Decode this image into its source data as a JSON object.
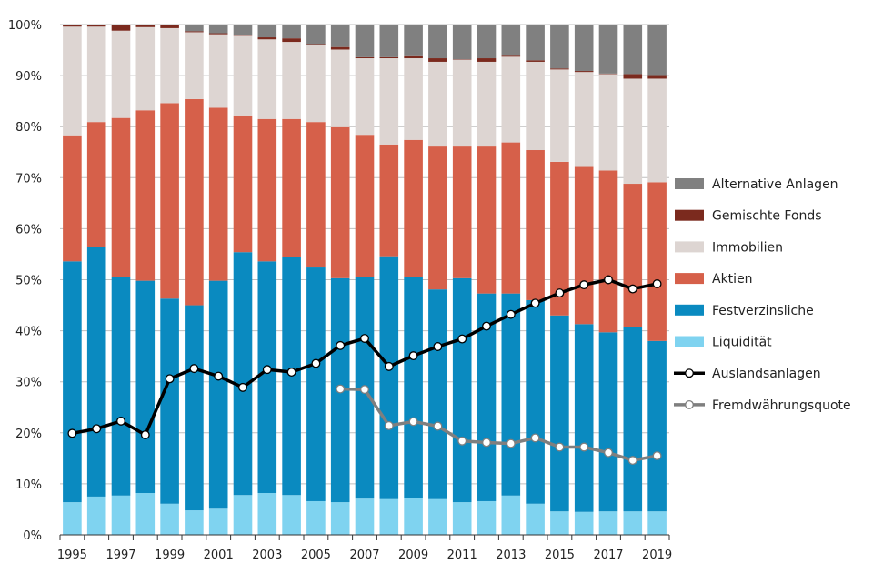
{
  "chart_data": {
    "type": "bar",
    "stacked": true,
    "title": "",
    "xlabel": "",
    "ylabel": "",
    "ylim": [
      0,
      100
    ],
    "y_ticks": [
      "0%",
      "10%",
      "20%",
      "30%",
      "40%",
      "50%",
      "60%",
      "70%",
      "80%",
      "90%",
      "100%"
    ],
    "x_tick_labels": [
      "1995",
      "1997",
      "1999",
      "2001",
      "2003",
      "2005",
      "2007",
      "2009",
      "2011",
      "2013",
      "2015",
      "2017",
      "2019"
    ],
    "grid": true,
    "legend_position": "right",
    "categories": [
      1995,
      1996,
      1997,
      1998,
      1999,
      2000,
      2001,
      2002,
      2003,
      2004,
      2005,
      2006,
      2007,
      2008,
      2009,
      2010,
      2011,
      2012,
      2013,
      2014,
      2015,
      2016,
      2017,
      2018,
      2019
    ],
    "series": [
      {
        "name": "Liquidität",
        "color": "#7fd3f0",
        "values": [
          6.4,
          7.5,
          7.7,
          8.2,
          6.1,
          4.8,
          5.3,
          7.8,
          8.2,
          7.8,
          6.6,
          6.4,
          7.1,
          7.0,
          7.3,
          7.0,
          6.4,
          6.6,
          7.7,
          6.1,
          4.6,
          4.5,
          4.6,
          4.6,
          4.6
        ]
      },
      {
        "name": "Festverzinsliche",
        "color": "#0a8ac0",
        "values": [
          47.2,
          48.9,
          42.8,
          41.6,
          40.2,
          40.2,
          44.5,
          47.6,
          45.4,
          46.6,
          45.8,
          43.9,
          43.4,
          47.6,
          43.2,
          41.1,
          43.9,
          40.7,
          39.6,
          39.9,
          38.4,
          36.8,
          35.1,
          36.1,
          33.4
        ]
      },
      {
        "name": "Aktien",
        "color": "#d6604a",
        "values": [
          24.7,
          24.5,
          31.2,
          33.4,
          38.3,
          40.4,
          33.9,
          26.8,
          27.9,
          27.1,
          28.5,
          29.6,
          27.9,
          21.9,
          26.9,
          28.0,
          25.8,
          28.8,
          29.6,
          29.4,
          30.1,
          30.8,
          31.7,
          28.1,
          31.1
        ]
      },
      {
        "name": "Immobilien",
        "color": "#ddd5d2",
        "values": [
          21.3,
          18.7,
          17.1,
          16.3,
          14.7,
          13.1,
          14.4,
          15.6,
          15.6,
          15.1,
          15.1,
          15.2,
          15.0,
          16.9,
          16.0,
          16.6,
          17.0,
          16.6,
          16.8,
          17.3,
          18.1,
          18.6,
          18.9,
          20.6,
          20.3
        ]
      },
      {
        "name": "Gemischte Fonds",
        "color": "#7b2a1e",
        "values": [
          0.4,
          0.4,
          1.2,
          0.5,
          0.7,
          0.2,
          0.2,
          0.1,
          0.4,
          0.7,
          0.2,
          0.5,
          0.2,
          0.2,
          0.4,
          0.7,
          0.1,
          0.7,
          0.2,
          0.3,
          0.2,
          0.2,
          0.1,
          0.9,
          0.7
        ]
      },
      {
        "name": "Alternative Anlagen",
        "color": "#808080",
        "values": [
          0,
          0,
          0,
          0,
          0,
          1.3,
          1.7,
          2.1,
          2.5,
          2.7,
          3.8,
          4.4,
          6.4,
          6.4,
          6.2,
          6.6,
          6.8,
          6.6,
          6.1,
          7.0,
          8.6,
          9.1,
          9.6,
          9.7,
          9.9
        ]
      }
    ],
    "lines": [
      {
        "name": "Auslandsanlagen",
        "color": "#000000",
        "x": [
          1995,
          1996,
          1997,
          1998,
          1999,
          2000,
          2001,
          2002,
          2003,
          2004,
          2005,
          2006,
          2007,
          2008,
          2009,
          2010,
          2011,
          2012,
          2013,
          2014,
          2015,
          2016,
          2017,
          2018,
          2019
        ],
        "values": [
          19.9,
          20.8,
          22.3,
          19.6,
          30.6,
          32.6,
          31.1,
          28.9,
          32.4,
          31.9,
          33.6,
          37.1,
          38.5,
          33.0,
          35.1,
          36.9,
          38.4,
          40.9,
          43.2,
          45.4,
          47.4,
          49.0,
          50.0,
          48.2,
          49.2
        ]
      },
      {
        "name": "Fremdwährungsquote",
        "color": "#7f7f7f",
        "x": [
          2006,
          2007,
          2008,
          2009,
          2010,
          2011,
          2012,
          2013,
          2014,
          2015,
          2016,
          2017,
          2018,
          2019
        ],
        "values": [
          28.6,
          28.5,
          21.4,
          22.2,
          21.3,
          18.4,
          18.1,
          17.9,
          19.0,
          17.2,
          17.2,
          16.1,
          14.6,
          15.5
        ]
      }
    ],
    "legend_order": [
      "Alternative Anlagen",
      "Gemischte Fonds",
      "Immobilien",
      "Aktien",
      "Festverzinsliche",
      "Liquidität",
      "Auslandsanlagen",
      "Fremdwährungsquote"
    ]
  }
}
